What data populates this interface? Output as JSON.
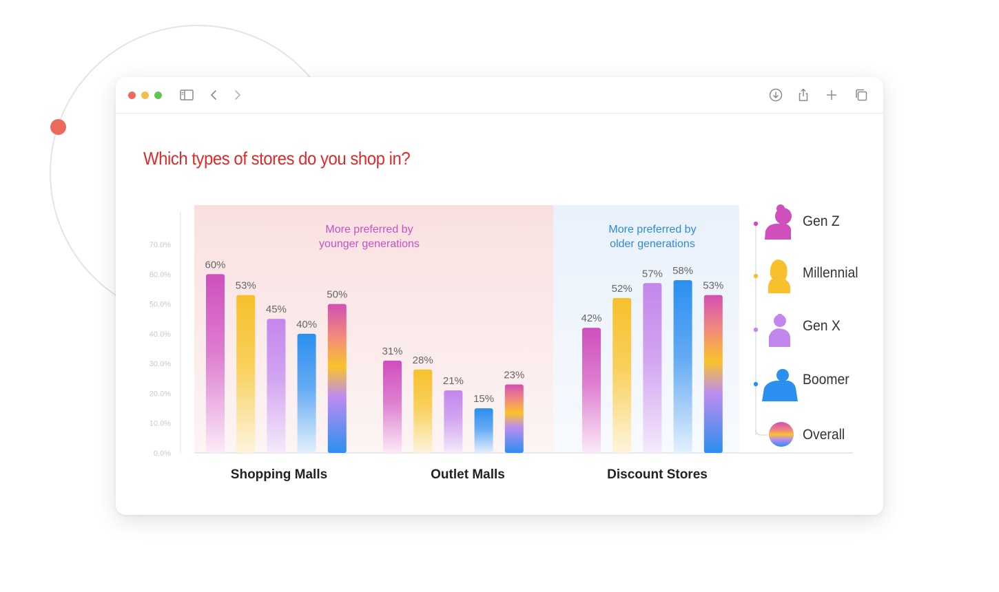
{
  "window": {
    "toolbar_icons": [
      "sidebar-icon",
      "back-icon",
      "forward-icon",
      "download-icon",
      "share-icon",
      "new-tab-icon",
      "tabs-icon"
    ]
  },
  "colors": {
    "traffic_red": "#ed6a5e",
    "traffic_yellow": "#f5bf4f",
    "traffic_green": "#61c554",
    "title": "#dd2a2a",
    "gen_z": "#cf4fbd",
    "millennial": "#f7c02c",
    "gen_x": "#c386ec",
    "boomer": "#2b8ff0",
    "young_region": "#f8e3e3",
    "old_region": "#eaf2fb",
    "young_text": "#c94fc2",
    "old_text": "#2f88e0"
  },
  "chart_data": {
    "type": "bar",
    "title": "Which types of stores do you shop in?",
    "categories": [
      "Shopping Malls",
      "Outlet Malls",
      "Discount Stores"
    ],
    "series": [
      {
        "name": "Gen Z",
        "values": [
          60,
          31,
          42
        ],
        "labels": [
          "60%",
          "31%",
          "42%"
        ]
      },
      {
        "name": "Millennial",
        "values": [
          53,
          28,
          52
        ],
        "labels": [
          "53%",
          "28%",
          "52%"
        ]
      },
      {
        "name": "Gen X",
        "values": [
          45,
          21,
          57
        ],
        "labels": [
          "45%",
          "21%",
          "57%"
        ]
      },
      {
        "name": "Boomer",
        "values": [
          40,
          15,
          58
        ],
        "labels": [
          "40%",
          "15%",
          "58%"
        ]
      },
      {
        "name": "Overall",
        "values": [
          50,
          23,
          53
        ],
        "labels": [
          "50%",
          "23%",
          "53%"
        ]
      }
    ],
    "ylim": [
      0,
      70
    ],
    "yticks": [
      "0.0%",
      "10.0%",
      "20.0%",
      "30.0%",
      "40.0%",
      "50.0%",
      "60.0%",
      "70.0%"
    ],
    "annotations": [
      {
        "text": [
          "More preferred by",
          "younger generations"
        ],
        "region": "young"
      },
      {
        "text": [
          "More preferred by",
          "older generations"
        ],
        "region": "old"
      }
    ],
    "legend_position": "right",
    "grid": false
  }
}
